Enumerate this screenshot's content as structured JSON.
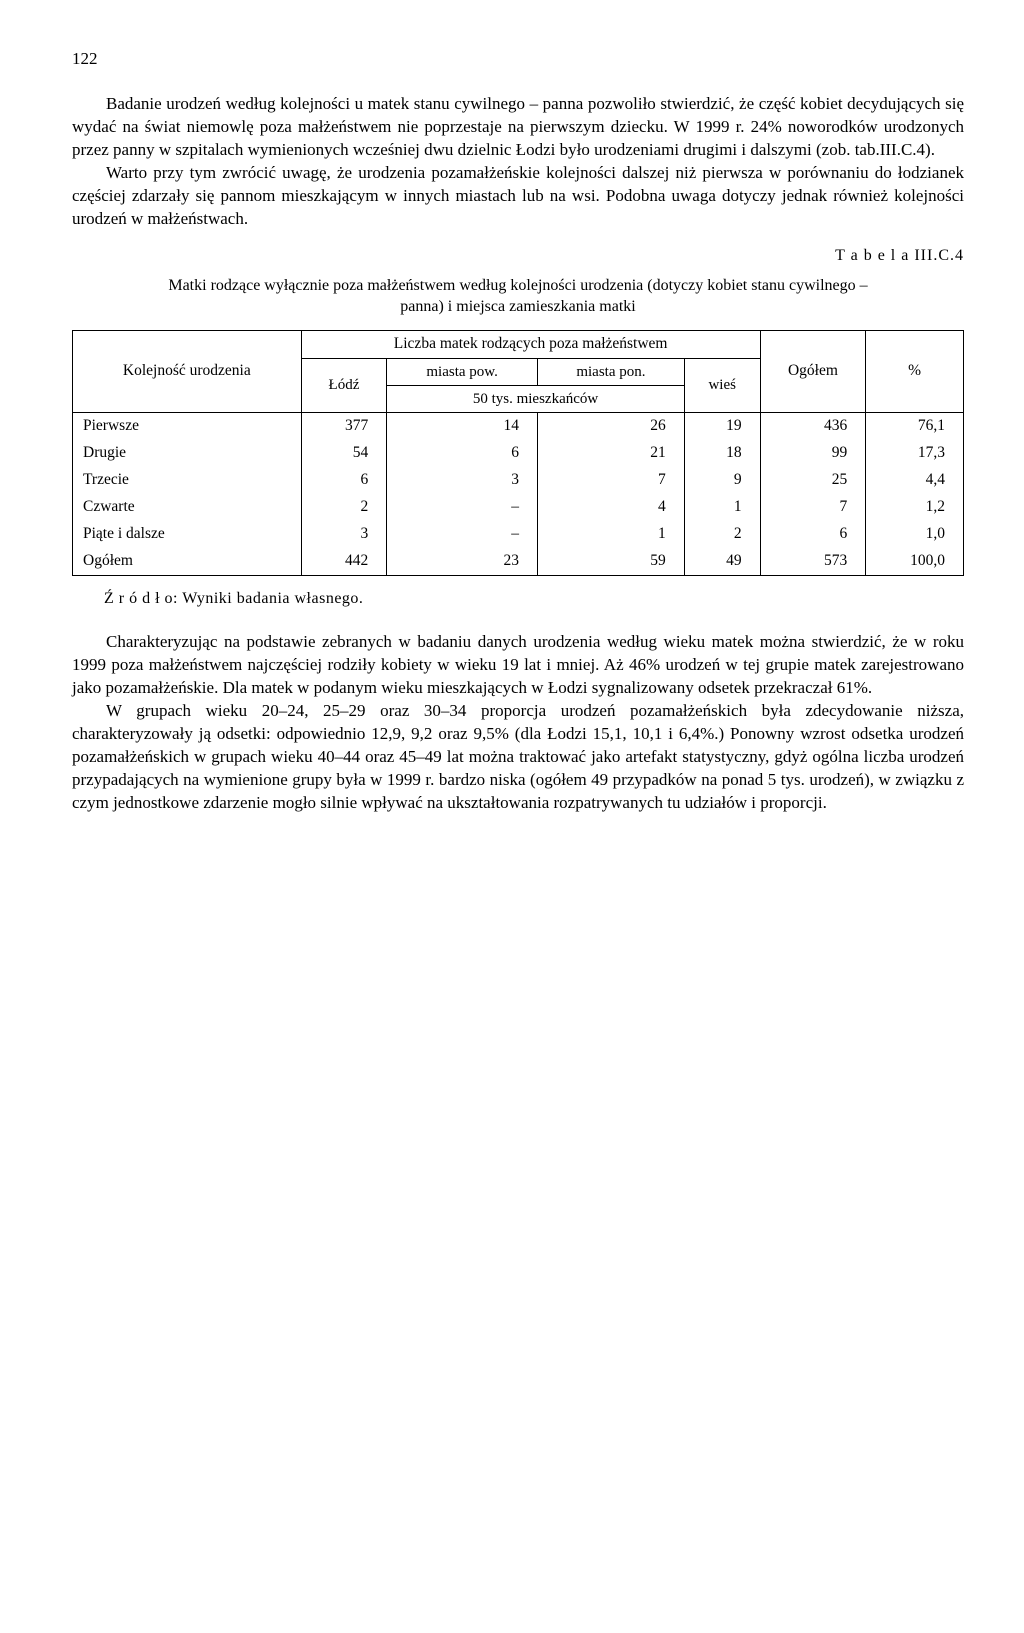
{
  "page_number": "122",
  "paragraph1": "Badanie urodzeń według kolejności u matek stanu cywilnego – panna pozwoliło stwierdzić, że część kobiet decydujących się wydać na świat niemowlę poza małżeństwem nie poprzestaje na pierwszym dziecku. W 1999 r. 24% noworodków urodzonych przez panny w szpitalach wymienionych wcześniej dwu dzielnic Łodzi było urodzeniami drugimi i dalszymi (zob. tab.III.C.4).",
  "paragraph2": "Warto przy tym zwrócić uwagę, że urodzenia pozamałżeńskie kolejności dalszej niż pierwsza w porównaniu do łodzianek częściej zdarzały się pannom mieszkającym w innych miastach lub na wsi. Podobna uwaga dotyczy jednak również kolejności urodzeń w małżeństwach.",
  "table_label": "T a b e l a  III.C.4",
  "table_caption": "Matki rodzące wyłącznie poza małżeństwem według kolejności urodzenia (dotyczy kobiet stanu cywilnego – panna) i miejsca zamieszkania matki",
  "table": {
    "col_header_group": "Liczba matek rodzących poza małżeństwem",
    "row_header": "Kolejność urodzenia",
    "col_lodz": "Łódź",
    "col_miasta_pow": "miasta pow.",
    "col_miasta_pon": "miasta pon.",
    "col_sub50": "50 tys. mieszkańców",
    "col_wies": "wieś",
    "col_ogolem": "Ogółem",
    "col_pct": "%",
    "rows": [
      {
        "label": "Pierwsze",
        "lodz": "377",
        "pow": "14",
        "pon": "26",
        "wies": "19",
        "ogolem": "436",
        "pct": "76,1"
      },
      {
        "label": "Drugie",
        "lodz": "54",
        "pow": "6",
        "pon": "21",
        "wies": "18",
        "ogolem": "99",
        "pct": "17,3"
      },
      {
        "label": "Trzecie",
        "lodz": "6",
        "pow": "3",
        "pon": "7",
        "wies": "9",
        "ogolem": "25",
        "pct": "4,4"
      },
      {
        "label": "Czwarte",
        "lodz": "2",
        "pow": "–",
        "pon": "4",
        "wies": "1",
        "ogolem": "7",
        "pct": "1,2"
      },
      {
        "label": "Piąte i dalsze",
        "lodz": "3",
        "pow": "–",
        "pon": "1",
        "wies": "2",
        "ogolem": "6",
        "pct": "1,0"
      },
      {
        "label": "Ogółem",
        "lodz": "442",
        "pow": "23",
        "pon": "59",
        "wies": "49",
        "ogolem": "573",
        "pct": "100,0"
      }
    ]
  },
  "source_label": "Ź r ó d ł o: Wyniki badania własnego.",
  "paragraph3": "Charakteryzując na podstawie zebranych w badaniu danych urodzenia według wieku matek można stwierdzić, że w roku 1999 poza małżeństwem najczęściej rodziły kobiety w wieku 19 lat i mniej. Aż 46% urodzeń w tej grupie matek zarejestrowano jako pozamałżeńskie. Dla matek w podanym wieku mieszkających w Łodzi sygnalizowany odsetek przekraczał 61%.",
  "paragraph4": "W grupach wieku 20–24, 25–29 oraz 30–34 proporcja urodzeń pozamałżeńskich była zdecydowanie niższa, charakteryzowały ją odsetki: odpowiednio 12,9, 9,2 oraz 9,5% (dla Łodzi 15,1, 10,1 i 6,4%.) Ponowny wzrost odsetka urodzeń pozamałżeńskich w grupach wieku 40–44 oraz 45–49 lat można traktować jako artefakt statystyczny, gdyż ogólna liczba urodzeń przypadających na wymienione grupy była w 1999 r. bardzo niska (ogółem 49 przypadków na ponad 5 tys. urodzeń), w związku z czym jednostkowe zdarzenie mogło silnie wpływać na ukształtowania rozpatrywanych tu udziałów i proporcji."
}
